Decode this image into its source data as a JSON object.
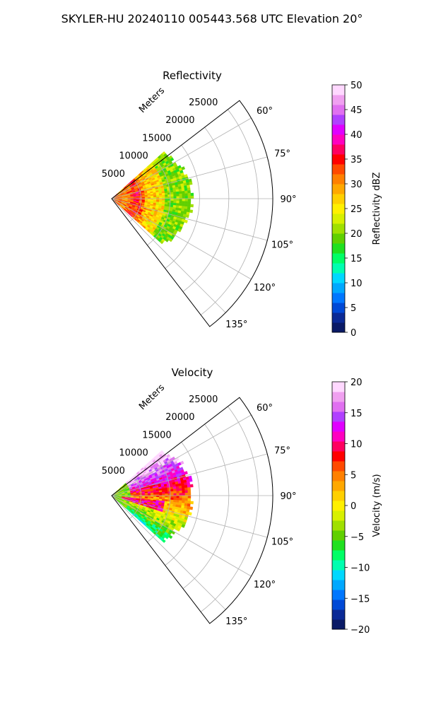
{
  "figure": {
    "suptitle": "SKYLER-HU  20240110  005443.568 UTC Elevation 20°"
  },
  "chart_data": [
    {
      "type": "heatmap",
      "projection": "polar sector (PPI)",
      "title": "Reflectivity",
      "radial_axis_label": "Meters",
      "radial_ticks": [
        5000,
        10000,
        15000,
        20000,
        25000
      ],
      "radial_tick_labels": [
        "5000",
        "10000",
        "15000",
        "20000",
        "25000"
      ],
      "rlim": [
        0,
        27500
      ],
      "angular_ticks_deg": [
        60,
        75,
        90,
        105,
        120,
        135
      ],
      "angular_tick_labels": [
        "60°",
        "75°",
        "90°",
        "105°",
        "120°",
        "135°"
      ],
      "theta_range_deg": [
        52.5,
        142.5
      ],
      "data_azimuth_range_deg": [
        48,
        132
      ],
      "data_max_range_m": 14000,
      "grid": true,
      "colorbar": {
        "label": "Reflectivity dBZ",
        "range": [
          0,
          50
        ],
        "ticks": [
          0,
          5,
          10,
          15,
          20,
          25,
          30,
          35,
          40,
          45,
          50
        ],
        "tick_labels": [
          "0",
          "5",
          "10",
          "15",
          "20",
          "25",
          "30",
          "35",
          "40",
          "45",
          "50"
        ],
        "colors": [
          "#0a1a66",
          "#0b2a96",
          "#0049d6",
          "#0077ff",
          "#00a8ff",
          "#00d8ff",
          "#00ffb0",
          "#00ff66",
          "#20e020",
          "#60d000",
          "#a0e000",
          "#d8f000",
          "#fff000",
          "#ffd000",
          "#ffa800",
          "#ff8000",
          "#ff4a00",
          "#ff0000",
          "#ff0060",
          "#ff00c0",
          "#e000ff",
          "#b040ff",
          "#e070f0",
          "#f0a0f0",
          "#ffd8ff"
        ]
      }
    },
    {
      "type": "heatmap",
      "projection": "polar sector (PPI)",
      "title": "Velocity",
      "radial_axis_label": "Meters",
      "radial_ticks": [
        5000,
        10000,
        15000,
        20000,
        25000
      ],
      "radial_tick_labels": [
        "5000",
        "10000",
        "15000",
        "20000",
        "25000"
      ],
      "rlim": [
        0,
        27500
      ],
      "angular_ticks_deg": [
        60,
        75,
        90,
        105,
        120,
        135
      ],
      "angular_tick_labels": [
        "60°",
        "75°",
        "90°",
        "105°",
        "120°",
        "135°"
      ],
      "theta_range_deg": [
        52.5,
        142.5
      ],
      "data_azimuth_range_deg": [
        48,
        132
      ],
      "data_max_range_m": 14000,
      "grid": true,
      "colorbar": {
        "label": "Velocity (m/s)",
        "range": [
          -20,
          20
        ],
        "ticks": [
          -20,
          -15,
          -10,
          -5,
          0,
          5,
          10,
          15,
          20
        ],
        "tick_labels": [
          "−20",
          "−15",
          "−10",
          "−5",
          "0",
          "5",
          "10",
          "15",
          "20"
        ],
        "colors": [
          "#0a1a66",
          "#0b2a96",
          "#0049d6",
          "#0077ff",
          "#00a8ff",
          "#00d8ff",
          "#00ffb0",
          "#00ff66",
          "#20e020",
          "#60d000",
          "#a0e000",
          "#d8f000",
          "#fff000",
          "#ffd000",
          "#ffa800",
          "#ff8000",
          "#ff4a00",
          "#ff0000",
          "#ff0060",
          "#ff00c0",
          "#e000ff",
          "#b040ff",
          "#e070f0",
          "#f0a0f0",
          "#ffd8ff"
        ]
      }
    }
  ]
}
